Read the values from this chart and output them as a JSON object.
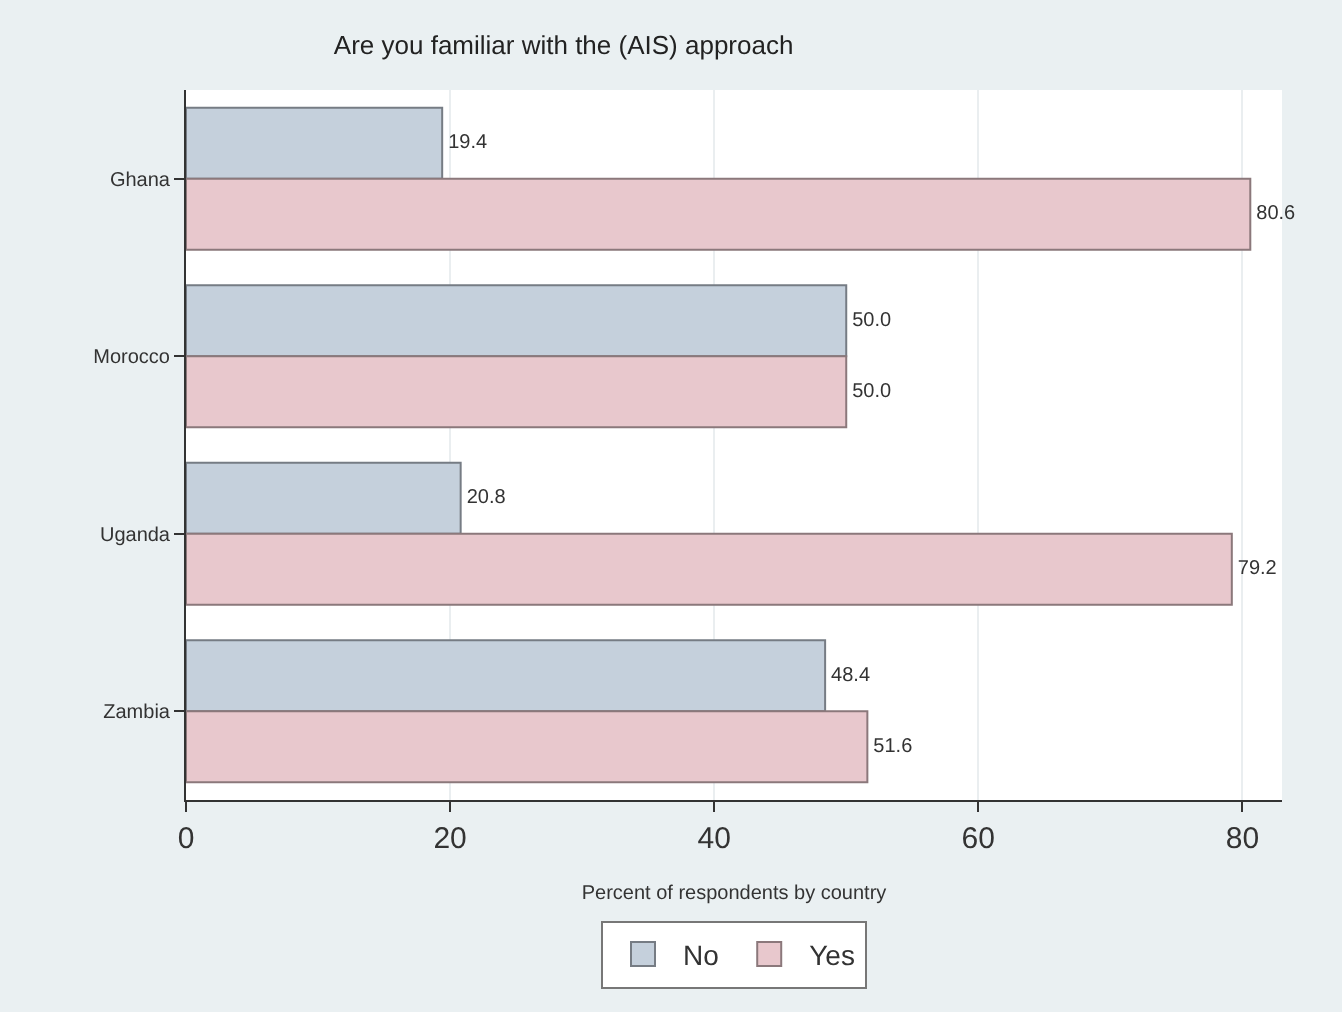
{
  "chart_data": {
    "type": "bar",
    "orientation": "horizontal",
    "title": "Are you familiar with the (AIS) approach",
    "xlabel": "Percent of respondents by country",
    "categories": [
      "Ghana",
      "Morocco",
      "Uganda",
      "Zambia"
    ],
    "series": [
      {
        "name": "No",
        "color": "#c5d0dc",
        "values": [
          19.4,
          50.0,
          20.8,
          48.4
        ],
        "value_labels": [
          "19.4",
          "50.0",
          "20.8",
          "48.4"
        ]
      },
      {
        "name": "Yes",
        "color": "#e8c8cd",
        "values": [
          80.6,
          50.0,
          79.2,
          51.6
        ],
        "value_labels": [
          "80.6",
          "50.0",
          "79.2",
          "51.6"
        ]
      }
    ],
    "xlim": [
      0,
      83
    ],
    "xticks": [
      0,
      20,
      40,
      60,
      80
    ],
    "grid": "x",
    "legend": "bottom"
  }
}
